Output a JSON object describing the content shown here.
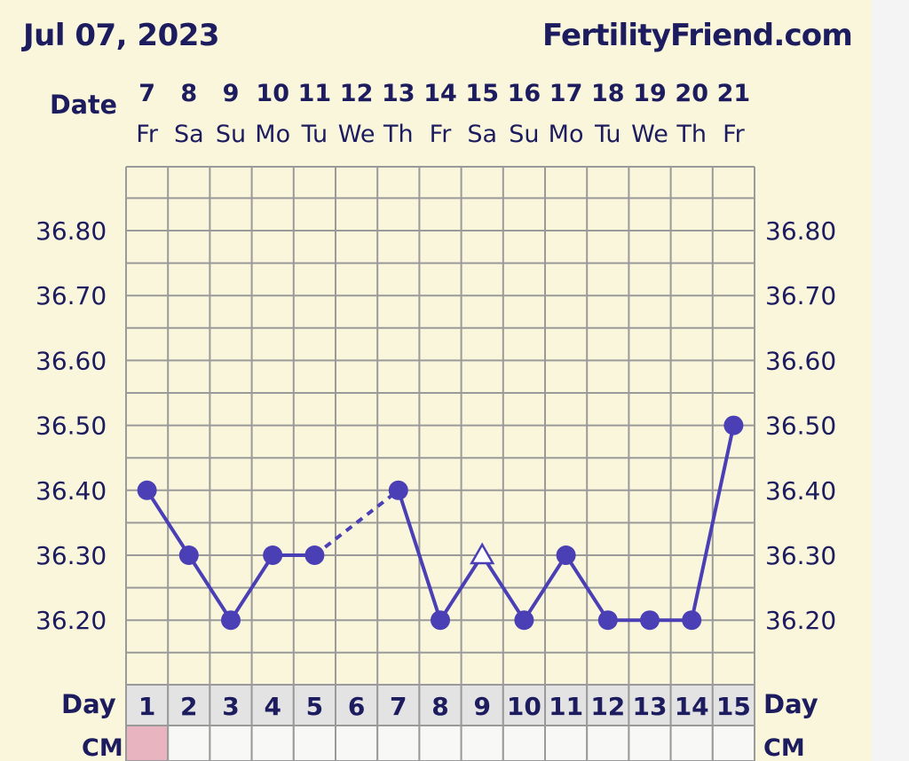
{
  "header": {
    "date": "Jul 07, 2023",
    "site": "FertilityFriend.com"
  },
  "labels": {
    "date_row": "Date",
    "day_row": "Day",
    "cm_row": "CM"
  },
  "colors": {
    "line": "#4a3fb4",
    "grid": "#9a9a9a",
    "panel": "#f9f6dc",
    "cm_day1": "#e8b4c0",
    "day_cell": "#e3e3e3"
  },
  "chart_data": {
    "type": "line",
    "x_dates": [
      "7",
      "8",
      "9",
      "10",
      "11",
      "12",
      "13",
      "14",
      "15",
      "16",
      "17",
      "18",
      "19",
      "20",
      "21"
    ],
    "x_weekdays": [
      "Fr",
      "Sa",
      "Su",
      "Mo",
      "Tu",
      "We",
      "Th",
      "Fr",
      "Sa",
      "Su",
      "Mo",
      "Tu",
      "We",
      "Th",
      "Fr"
    ],
    "x_cycle_days": [
      "1",
      "2",
      "3",
      "4",
      "5",
      "6",
      "7",
      "8",
      "9",
      "10",
      "11",
      "12",
      "13",
      "14",
      "15"
    ],
    "y_ticks": [
      "36.80",
      "36.70",
      "36.60",
      "36.50",
      "36.40",
      "36.30",
      "36.20"
    ],
    "ylim": [
      36.1,
      36.9
    ],
    "grid": true,
    "series": [
      {
        "values": [
          36.4,
          36.3,
          36.2,
          36.3,
          36.3,
          null,
          36.4,
          36.2,
          36.3,
          36.2,
          36.3,
          36.2,
          36.2,
          36.2,
          36.5
        ],
        "markers": [
          "dot",
          "dot",
          "dot",
          "dot",
          "dot",
          null,
          "dot",
          "dot",
          "triangle",
          "dot",
          "dot",
          "dot",
          "dot",
          "dot",
          "dot"
        ],
        "segments": [
          "solid",
          "solid",
          "solid",
          "solid",
          "dashed",
          "dashed",
          "solid",
          "solid",
          "solid",
          "solid",
          "solid",
          "solid",
          "solid",
          "solid"
        ]
      }
    ]
  }
}
